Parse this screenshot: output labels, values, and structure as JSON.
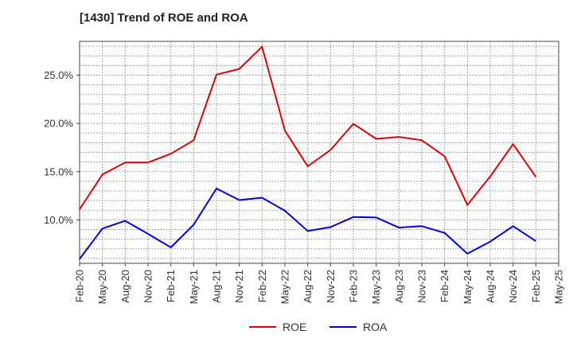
{
  "chart_data": {
    "type": "line",
    "title": "[1430]  Trend of ROE and ROA",
    "categories": [
      "Feb-20",
      "May-20",
      "Aug-20",
      "Nov-20",
      "Feb-21",
      "May-21",
      "Aug-21",
      "Nov-21",
      "Feb-22",
      "May-22",
      "Aug-22",
      "Nov-22",
      "Feb-23",
      "May-23",
      "Aug-23",
      "Nov-23",
      "Feb-24",
      "May-24",
      "Aug-24",
      "Nov-24",
      "Feb-25",
      "May-25"
    ],
    "y_ticks": [
      "10.0%",
      "15.0%",
      "20.0%",
      "25.0%"
    ],
    "y_tick_values": [
      10,
      15,
      20,
      25
    ],
    "ylim": [
      5.5,
      28.5
    ],
    "grid": true,
    "legend_position": "bottom-center",
    "series": [
      {
        "name": "ROE",
        "color": "#e00000",
        "values": [
          11.1,
          14.7,
          15.95,
          15.95,
          16.85,
          18.25,
          25.05,
          25.65,
          27.95,
          19.25,
          15.55,
          17.25,
          19.95,
          18.4,
          18.6,
          18.25,
          16.6,
          11.55,
          14.5,
          17.85,
          14.45,
          null
        ]
      },
      {
        "name": "ROA",
        "color": "#0000e0",
        "values": [
          5.95,
          9.1,
          9.9,
          8.55,
          7.15,
          9.5,
          13.25,
          12.05,
          12.3,
          10.95,
          8.85,
          9.25,
          10.3,
          10.25,
          9.2,
          9.35,
          8.65,
          6.5,
          7.75,
          9.35,
          7.8,
          null
        ]
      }
    ]
  }
}
